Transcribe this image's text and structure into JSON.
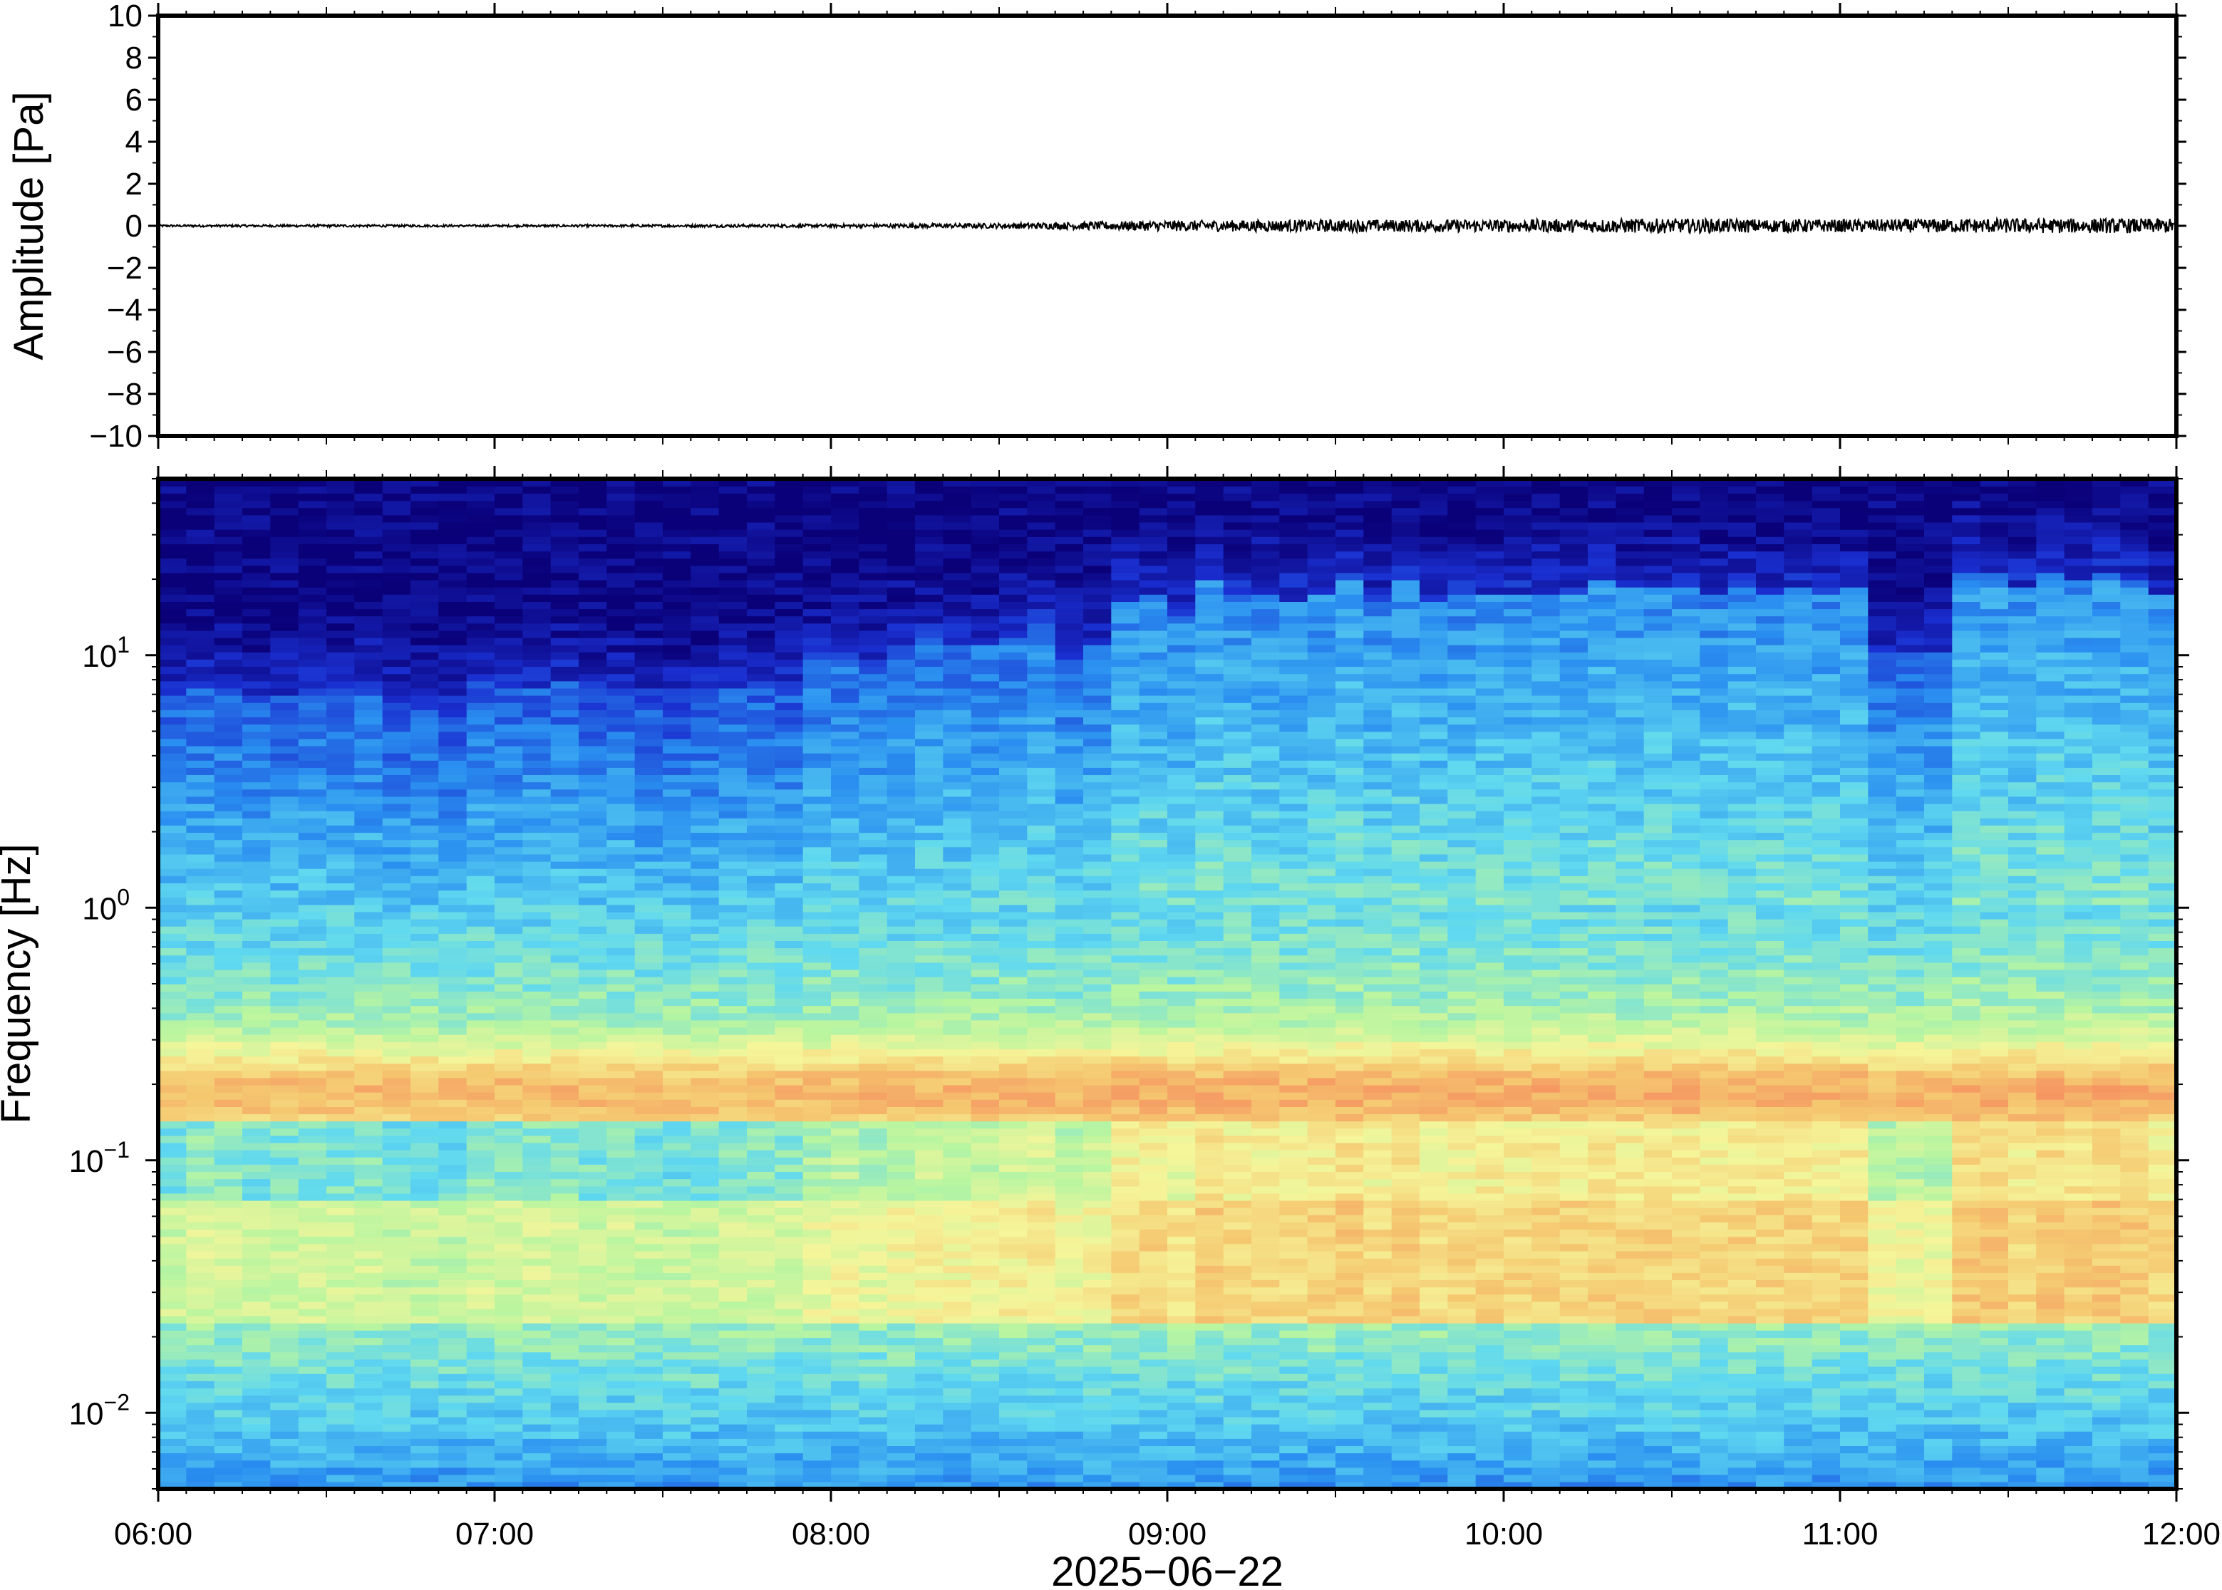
{
  "chart_data": [
    {
      "type": "line",
      "ylabel": "Amplitude [Pa]",
      "ylim": [
        -10,
        10
      ],
      "yticks": [
        -10,
        -8,
        -6,
        -4,
        -2,
        0,
        2,
        4,
        6,
        8,
        10
      ],
      "ytick_labels": [
        "−10",
        "−8",
        "−6",
        "−4",
        "−2",
        "0",
        "2",
        "4",
        "6",
        "8",
        "10"
      ],
      "xlim": [
        "2025-06-22 06:00",
        "2025-06-22 12:00"
      ],
      "series": [
        {
          "color": "#000000",
          "description_of_shape": "noise trace centered on 0",
          "x_hours": [
            6.0,
            6.5,
            7.0,
            7.5,
            8.0,
            8.5,
            9.0,
            9.5,
            10.0,
            10.5,
            11.0,
            11.5,
            12.0
          ],
          "envelope_pa": [
            0.05,
            0.06,
            0.05,
            0.06,
            0.08,
            0.12,
            0.25,
            0.3,
            0.3,
            0.35,
            0.3,
            0.35,
            0.35
          ]
        }
      ],
      "grid": false
    },
    {
      "type": "heatmap",
      "ylabel": "Frequency [Hz]",
      "yscale": "log",
      "ylim": [
        0.005,
        50
      ],
      "yticks": [
        0.01,
        0.1,
        1,
        10
      ],
      "ytick_labels": [
        {
          "base": "10",
          "exp": "−2"
        },
        {
          "base": "10",
          "exp": "−1"
        },
        {
          "base": "10",
          "exp": "0"
        },
        {
          "base": "10",
          "exp": "1"
        }
      ],
      "xlabel": "2025−06−22",
      "xlim": [
        "06:00",
        "12:00"
      ],
      "xticks": [
        "06:00",
        "07:00",
        "08:00",
        "09:00",
        "10:00",
        "11:00",
        "12:00"
      ],
      "colormap": [
        "#0a0078",
        "#1a2fd0",
        "#2a8ff0",
        "#5fd8f0",
        "#b8f5a0",
        "#f5f59a",
        "#f5c870",
        "#f59060"
      ],
      "grid": false
    }
  ],
  "footer": {
    "date_label": "2025−06−22"
  }
}
